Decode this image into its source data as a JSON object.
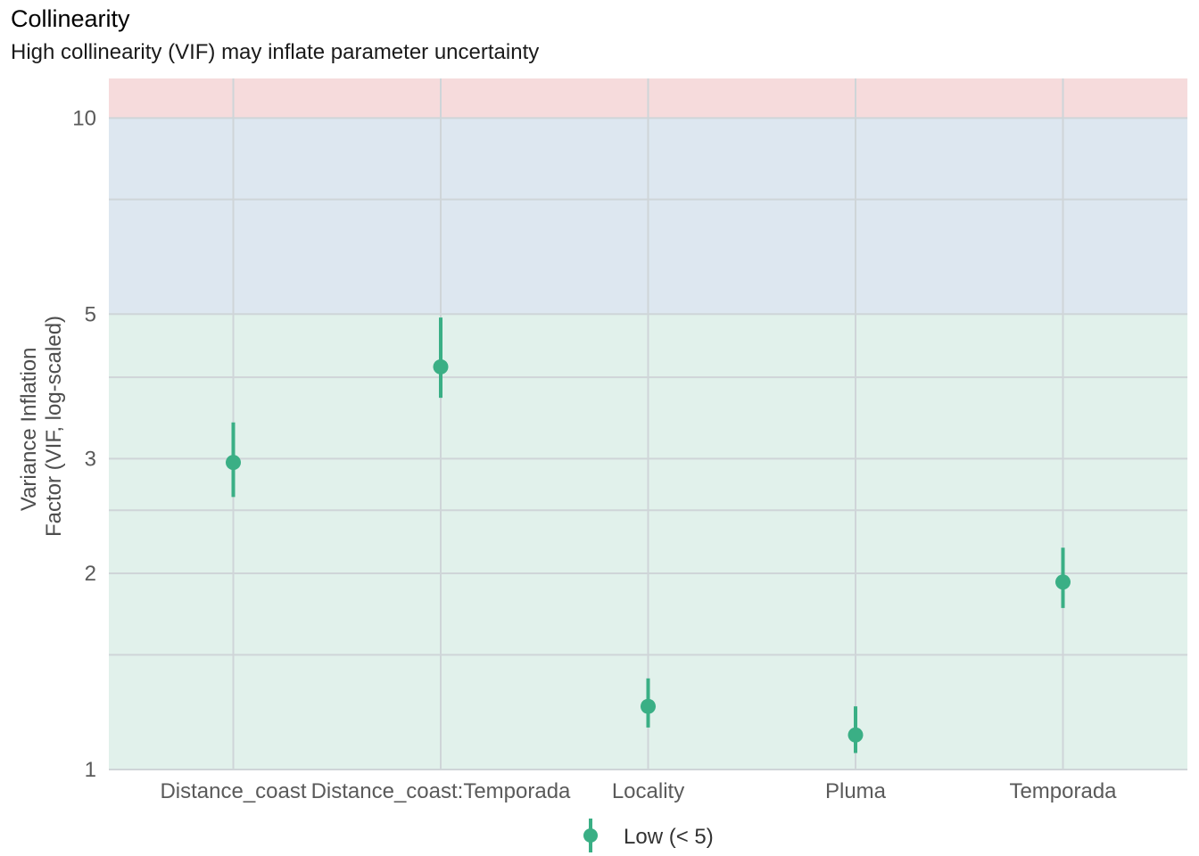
{
  "chart_data": {
    "type": "scatter",
    "title": "Collinearity",
    "subtitle": "High collinearity (VIF) may inflate parameter uncertainty",
    "ylabel_lines": [
      "Variance Inflation",
      "Factor (VIF, log-scaled)"
    ],
    "xlabel": "",
    "y_scale": "log",
    "ylim": [
      1,
      11.5
    ],
    "y_ticks": [
      1,
      2,
      3,
      5,
      10
    ],
    "y_minor_ticks": [
      1.5,
      2.5,
      4,
      7.5
    ],
    "categories": [
      "Distance_coast",
      "Distance_coast:Temporada",
      "Locality",
      "Pluma",
      "Temporada"
    ],
    "series": [
      {
        "name": "Low (< 5)",
        "vif": [
          2.96,
          4.15,
          1.25,
          1.13,
          1.94
        ],
        "ci_low": [
          2.62,
          3.72,
          1.16,
          1.06,
          1.77
        ],
        "ci_high": [
          3.41,
          4.94,
          1.38,
          1.25,
          2.19
        ]
      }
    ],
    "bands": [
      {
        "level": "low",
        "from": 1,
        "to": 5,
        "color": "#e1f1eb"
      },
      {
        "level": "moderate",
        "from": 5,
        "to": 10,
        "color": "#dde7f0"
      },
      {
        "level": "high",
        "from": 10,
        "to": 11.5,
        "color": "#f6dbdc"
      }
    ],
    "colors": {
      "point": "#3aaf85",
      "grid": "#cfd5d8"
    },
    "legend": {
      "position": "bottom",
      "label": "Low (< 5)"
    },
    "grid": true
  }
}
